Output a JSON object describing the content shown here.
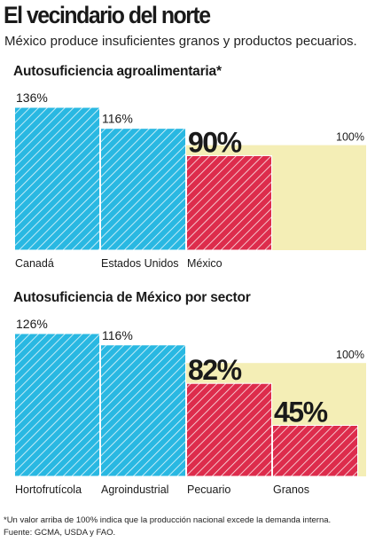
{
  "title": "El vecindario del norte",
  "subtitle": "México produce insuficientes granos y productos pecuarios.",
  "colors": {
    "blue": "#29b8e2",
    "red": "#dd2c4c",
    "reference_band": "#f4eeb6",
    "text": "#1a1a1a"
  },
  "chart_data": [
    {
      "type": "bar",
      "title": "Autosuficiencia agroalimentaria*",
      "categories": [
        "Canadá",
        "Estados Unidos",
        "México"
      ],
      "values": [
        136,
        116,
        90
      ],
      "value_labels": [
        "136%",
        "116%",
        "90%"
      ],
      "bar_colors": [
        "blue",
        "blue",
        "red"
      ],
      "reference_line": {
        "value": 100,
        "label": "100%"
      },
      "ylim": [
        0,
        136
      ],
      "grid": false,
      "xlabel": "",
      "ylabel": ""
    },
    {
      "type": "bar",
      "title": "Autosuficiencia de México por sector",
      "categories": [
        "Hortofrutícola",
        "Agroindustrial",
        "Pecuario",
        "Granos"
      ],
      "values": [
        126,
        116,
        82,
        45
      ],
      "value_labels": [
        "126%",
        "116%",
        "82%",
        "45%"
      ],
      "bar_colors": [
        "blue",
        "blue",
        "red",
        "red"
      ],
      "reference_line": {
        "value": 100,
        "label": "100%"
      },
      "ylim": [
        0,
        126
      ],
      "grid": false,
      "xlabel": "",
      "ylabel": ""
    }
  ],
  "footnotes": [
    "*Un valor arriba de 100% indica que la producción nacional excede la demanda interna.",
    "Fuente: GCMA, USDA y FAO."
  ]
}
